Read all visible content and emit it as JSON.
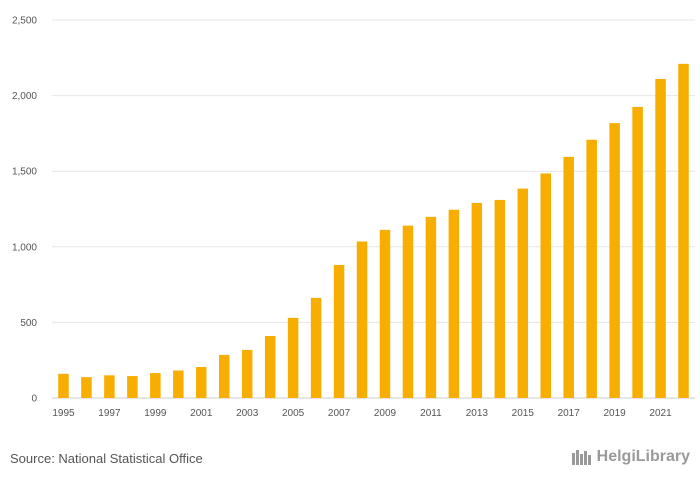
{
  "chart_data": {
    "type": "bar",
    "title": "",
    "xlabel": "",
    "ylabel": "",
    "categories": [
      "1995",
      "1996",
      "1997",
      "1998",
      "1999",
      "2000",
      "2001",
      "2002",
      "2003",
      "2004",
      "2005",
      "2006",
      "2007",
      "2008",
      "2009",
      "2010",
      "2011",
      "2012",
      "2013",
      "2014",
      "2015",
      "2016",
      "2017",
      "2018",
      "2019",
      "2020",
      "2021",
      "2022"
    ],
    "values": [
      160,
      138,
      150,
      145,
      165,
      182,
      205,
      285,
      318,
      410,
      530,
      662,
      880,
      1035,
      1112,
      1140,
      1198,
      1245,
      1290,
      1310,
      1385,
      1485,
      1595,
      1708,
      1818,
      1925,
      2110,
      2210
    ],
    "x_tick_labels": [
      "1995",
      "1997",
      "1999",
      "2001",
      "2003",
      "2005",
      "2007",
      "2009",
      "2011",
      "2013",
      "2015",
      "2017",
      "2019",
      "2021"
    ],
    "y_ticks": [
      0,
      500,
      1000,
      1500,
      2000,
      2500
    ],
    "y_tick_labels": [
      "0",
      "500",
      "1,000",
      "1,500",
      "2,000",
      "2,500"
    ],
    "ylim": [
      0,
      2500
    ],
    "grid": true,
    "bar_color": "#F7AE00",
    "grid_color": "#E6E6E6",
    "axis_color": "#CCCCCC"
  },
  "footer": {
    "source": "Source: National Statistical Office",
    "brand": "HelgiLibrary"
  }
}
